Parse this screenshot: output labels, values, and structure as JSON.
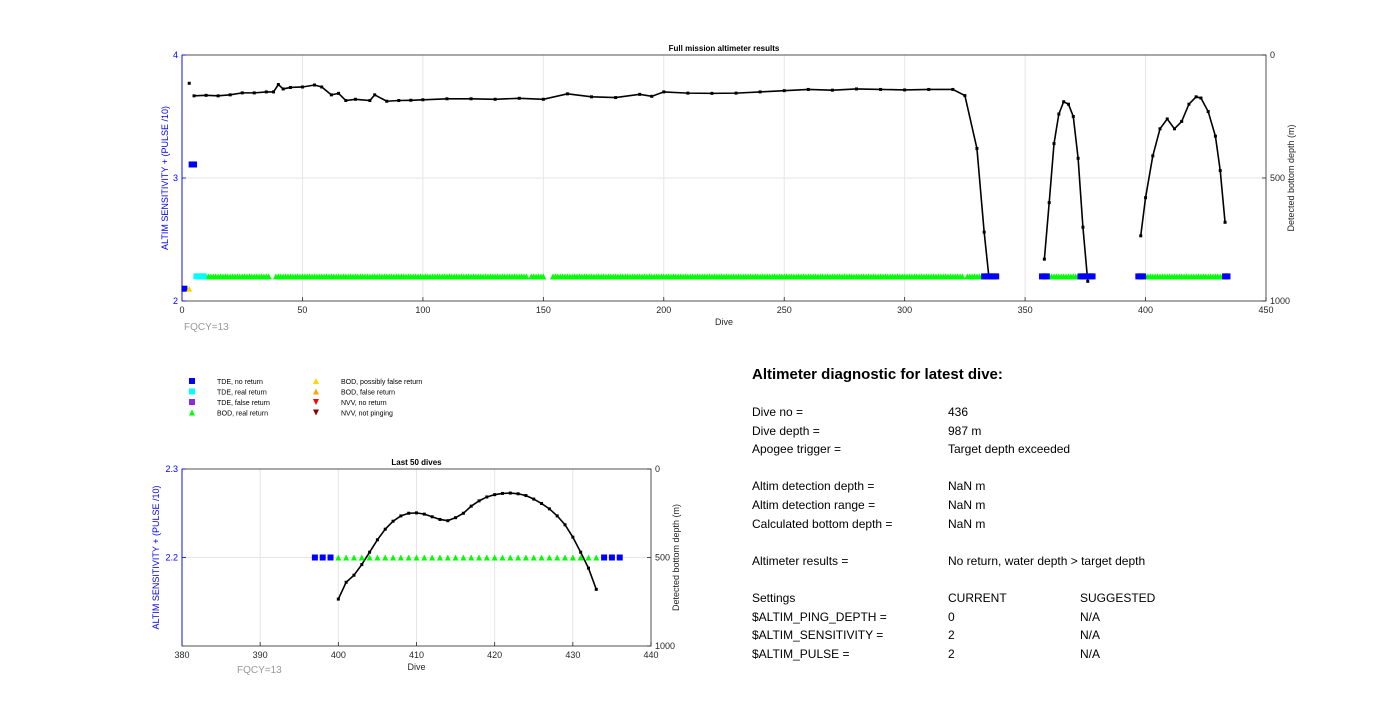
{
  "figure": {
    "colors": {
      "axis_left": "#0000ff",
      "axis": "#262626",
      "grid": "#e6e6e6",
      "tde_no_return": "#0000ff",
      "tde_real_return": "#00ffff",
      "tde_false_return": "#8a2be2",
      "bod_real_return": "#00ff00",
      "bod_possibly_false": "#ffd700",
      "bod_false_return": "#ffa500",
      "nvv_no_return": "#ff0000",
      "nvv_not_pinging": "#8b0000",
      "bottom_depth_line": "#000000",
      "fqcy_text": "#999999"
    }
  },
  "chart_data": [
    {
      "id": "full",
      "type": "scatter",
      "title": "Full mission altimeter results",
      "xlabel": "Dive",
      "ylabel": "ALTIM SENSITIVITY + (PULSE /10)",
      "y2label": "Detected bottom depth (m)",
      "xlim": [
        0,
        450
      ],
      "ylim": [
        2,
        4
      ],
      "y2lim": [
        1000,
        0
      ],
      "xticks": [
        0,
        50,
        100,
        150,
        200,
        250,
        300,
        350,
        400,
        450
      ],
      "yticks": [
        2,
        3,
        4
      ],
      "y2ticks": [
        0,
        500,
        1000
      ],
      "grid": true,
      "annotation": "FQCY=13",
      "markers": {
        "tde_no_return": {
          "x": [
            1,
            4,
            5,
            333,
            334,
            335,
            336,
            337,
            338,
            357,
            358,
            359,
            373,
            374,
            375,
            376,
            377,
            378,
            397,
            398,
            399,
            433,
            434
          ],
          "y": [
            2.1,
            3.11,
            3.11,
            2.2,
            2.2,
            2.2,
            2.2,
            2.2,
            2.2,
            2.2,
            2.2,
            2.2,
            2.2,
            2.2,
            2.2,
            2.2,
            2.2,
            2.2,
            2.2,
            2.2,
            2.2,
            2.2,
            2.2
          ]
        },
        "tde_real_return": {
          "x": [
            6,
            7,
            8,
            9
          ],
          "y": [
            2.2,
            2.2,
            2.2,
            2.2
          ]
        },
        "bod_possibly_false": {
          "x": [
            3
          ],
          "y": [
            2.1
          ]
        },
        "bod_real_return_ranges": [
          [
            10,
            36
          ],
          [
            39,
            143
          ],
          [
            145,
            150
          ],
          [
            154,
            324
          ],
          [
            326,
            332
          ],
          [
            360,
            372
          ],
          [
            400,
            432
          ]
        ],
        "bod_real_return_y": 2.2
      },
      "bottom_depth_segments": [
        {
          "x": [
            3
          ],
          "y": [
            115
          ]
        },
        {
          "x": [
            5,
            10,
            15,
            20,
            25,
            30,
            35,
            38,
            40,
            42,
            45,
            50,
            55,
            58,
            62,
            65,
            68,
            72,
            78,
            80,
            85,
            90,
            95,
            100,
            110,
            120,
            130,
            140,
            150,
            160,
            170,
            180,
            190,
            195,
            200,
            210,
            220,
            230,
            240,
            250,
            260,
            270,
            280,
            290,
            300,
            310,
            320,
            325,
            330,
            333,
            335
          ],
          "y": [
            166,
            164,
            166,
            162,
            154,
            154,
            150,
            150,
            120,
            138,
            132,
            130,
            122,
            130,
            162,
            156,
            185,
            180,
            185,
            162,
            188,
            185,
            184,
            182,
            178,
            178,
            180,
            176,
            180,
            158,
            170,
            173,
            160,
            168,
            150,
            155,
            156,
            155,
            150,
            145,
            140,
            143,
            138,
            140,
            142,
            140,
            140,
            165,
            380,
            720,
            905
          ]
        },
        {
          "x": [
            358,
            360,
            362,
            364,
            366,
            368,
            370,
            372,
            374,
            376
          ],
          "y": [
            830,
            600,
            360,
            240,
            190,
            200,
            250,
            420,
            700,
            920
          ]
        },
        {
          "x": [
            398,
            400,
            403,
            406,
            409,
            412,
            415,
            418,
            421,
            423,
            426,
            429,
            431,
            433
          ],
          "y": [
            735,
            580,
            410,
            300,
            260,
            300,
            270,
            200,
            170,
            175,
            230,
            330,
            470,
            680
          ]
        }
      ]
    },
    {
      "id": "last50",
      "type": "scatter",
      "title": "Last 50 dives",
      "xlabel": "Dive",
      "ylabel": "ALTIM SENSITIVITY + (PULSE /10)",
      "y2label": "Detected bottom depth (m)",
      "xlim": [
        380,
        440
      ],
      "ylim": [
        2.1,
        2.3
      ],
      "y2lim": [
        1000,
        0
      ],
      "xticks": [
        380,
        390,
        400,
        410,
        420,
        430,
        440
      ],
      "yticks": [
        2.2,
        2.3
      ],
      "y2ticks": [
        0,
        500,
        1000
      ],
      "grid": true,
      "annotation": "FQCY=13",
      "markers": {
        "tde_no_return": {
          "x": [
            397,
            398,
            399,
            434,
            435,
            436
          ],
          "y": [
            2.2,
            2.2,
            2.2,
            2.2,
            2.2,
            2.2
          ]
        },
        "bod_real_return_ranges": [
          [
            400,
            433
          ]
        ],
        "bod_real_return_y": 2.2
      },
      "bottom_depth_segments": [
        {
          "x": [
            400,
            401,
            402,
            403,
            404,
            405,
            406,
            407,
            408,
            409,
            410,
            411,
            412,
            413,
            414,
            415,
            416,
            417,
            418,
            419,
            420,
            421,
            422,
            423,
            424,
            425,
            426,
            427,
            428,
            429,
            430,
            431,
            432,
            433
          ],
          "y": [
            735,
            640,
            600,
            540,
            470,
            400,
            340,
            295,
            265,
            250,
            248,
            255,
            270,
            285,
            292,
            275,
            250,
            210,
            180,
            158,
            145,
            138,
            136,
            140,
            150,
            170,
            195,
            225,
            265,
            315,
            385,
            470,
            560,
            680
          ]
        }
      ]
    }
  ],
  "legend": {
    "entries": [
      {
        "label": "TDE, no return",
        "marker": "square",
        "color": "#0000ff"
      },
      {
        "label": "TDE, real return",
        "marker": "square",
        "color": "#00ffff"
      },
      {
        "label": "TDE, false return",
        "marker": "square",
        "color": "#8a2be2"
      },
      {
        "label": "BOD, real return",
        "marker": "triangle-up",
        "color": "#00ff00"
      },
      {
        "label": "BOD, possibly false return",
        "marker": "triangle-up",
        "color": "#ffd700"
      },
      {
        "label": "BOD, false return",
        "marker": "triangle-up",
        "color": "#ffa500"
      },
      {
        "label": "NVV, no return",
        "marker": "triangle-down",
        "color": "#ff0000"
      },
      {
        "label": "NVV, not pinging",
        "marker": "triangle-down",
        "color": "#8b0000"
      }
    ]
  },
  "diagnostic": {
    "title": "Altimeter diagnostic for latest dive:",
    "dive_no_label": "Dive no =",
    "dive_no_value": "436",
    "dive_depth_label": "Dive depth =",
    "dive_depth_value": "987 m",
    "apogee_label": "Apogee trigger =",
    "apogee_value": "Target depth exceeded",
    "det_depth_label": "Altim detection depth =",
    "det_depth_value": "NaN m",
    "det_range_label": "Altim detection range =",
    "det_range_value": "NaN m",
    "calc_depth_label": "Calculated bottom depth =",
    "calc_depth_value": "NaN m",
    "results_label": "Altimeter results =",
    "results_value": "No return, water depth > target depth",
    "settings_label": "Settings",
    "current_label": "CURRENT",
    "suggested_label": "SUGGESTED",
    "settings": [
      {
        "name": "$ALTIM_PING_DEPTH =",
        "current": "0",
        "suggested": "N/A"
      },
      {
        "name": "$ALTIM_SENSITIVITY =",
        "current": "2",
        "suggested": "N/A"
      },
      {
        "name": "$ALTIM_PULSE =",
        "current": "2",
        "suggested": "N/A"
      }
    ]
  }
}
